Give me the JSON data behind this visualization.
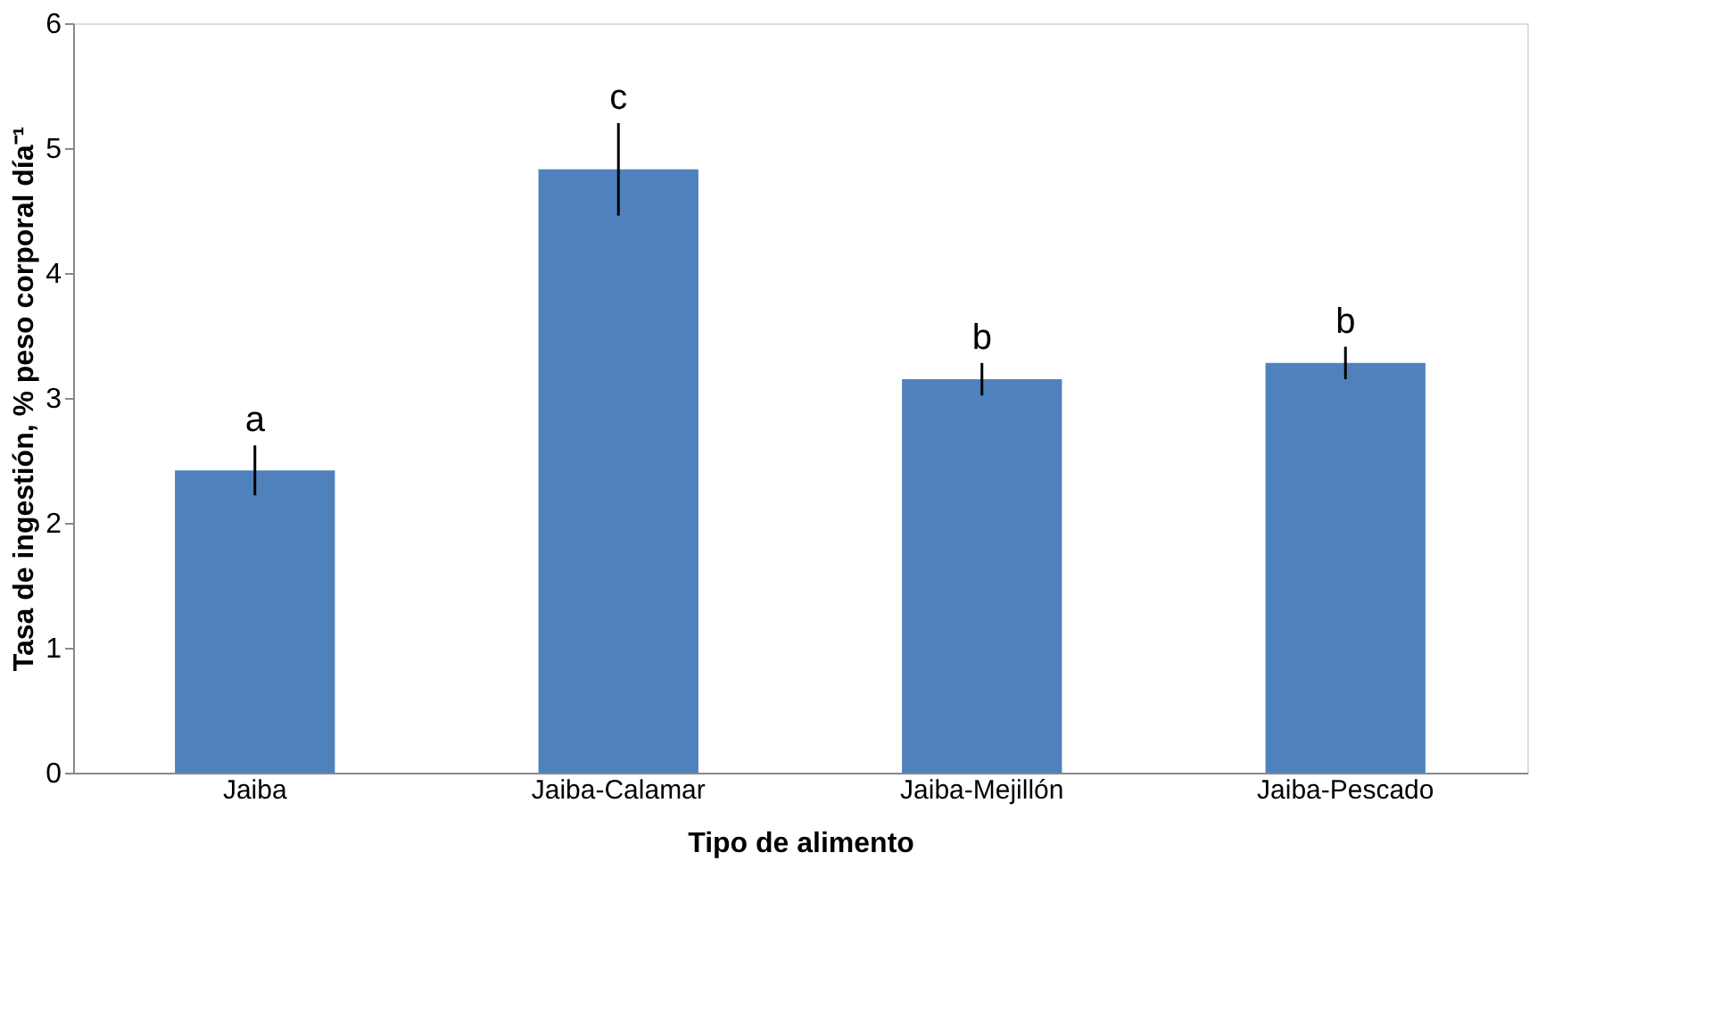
{
  "chart_data": {
    "type": "bar",
    "xlabel": "Tipo de alimento",
    "ylabel": "Tasa de ingestión, % peso corporal día⁻¹",
    "categories": [
      "Jaiba",
      "Jaiba-Calamar",
      "Jaiba-Mejillón",
      "Jaiba-Pescado"
    ],
    "values": [
      2.42,
      4.83,
      3.15,
      3.28
    ],
    "errors": [
      0.2,
      0.37,
      0.13,
      0.13
    ],
    "color": "#4f81bd",
    "ylim": [
      0,
      6
    ],
    "yticks": [
      0,
      1,
      2,
      3,
      4,
      5,
      6
    ],
    "grid": false,
    "annotations": [
      "a",
      "c",
      "b",
      "b"
    ]
  }
}
